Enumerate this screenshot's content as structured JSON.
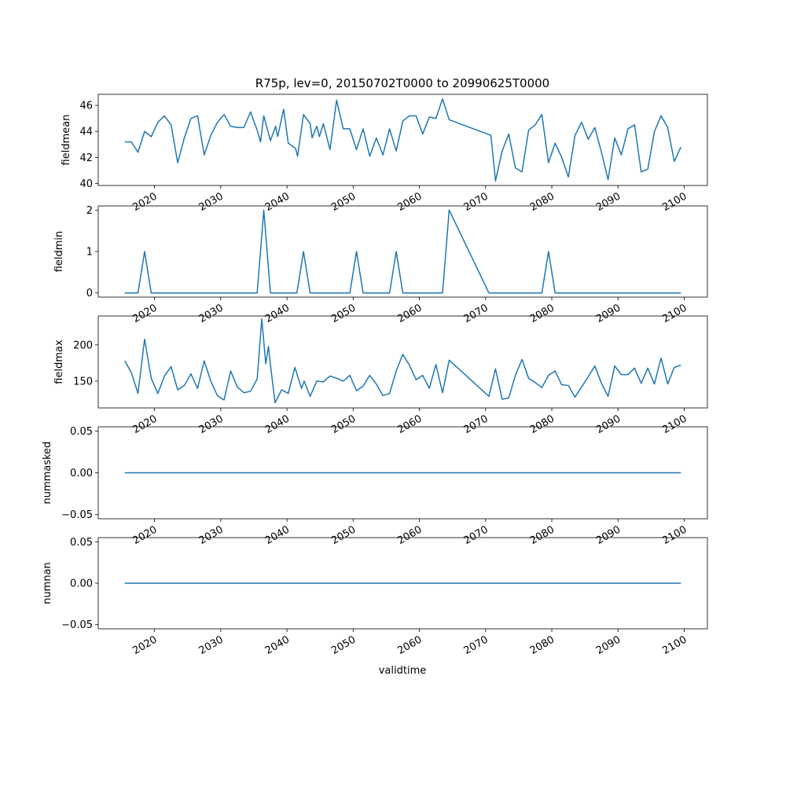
{
  "figure": {
    "title": "R75p, lev=0, 20150702T0000 to 20990625T0000",
    "xlabel": "validtime",
    "line_color": "#1f77b4"
  },
  "chart_data": [
    {
      "type": "line",
      "ylabel": "fieldmean",
      "xlim": [
        2011.5,
        2103.5
      ],
      "ylim": [
        39.85,
        46.85
      ],
      "xticks": [
        2020,
        2030,
        2040,
        2050,
        2060,
        2070,
        2080,
        2090,
        2100
      ],
      "xtick_labels": [
        "2020",
        "2030",
        "2040",
        "2050",
        "2060",
        "2070",
        "2080",
        "2090",
        "2100"
      ],
      "yticks": [
        40,
        42,
        44,
        46
      ],
      "ytick_labels": [
        "40",
        "42",
        "44",
        "46"
      ],
      "x": [
        2015.5,
        2016.5,
        2017.5,
        2018.5,
        2019.5,
        2020.5,
        2021.5,
        2022.5,
        2023.5,
        2024.5,
        2025.5,
        2026.5,
        2027.5,
        2028.5,
        2029.5,
        2030.5,
        2031.5,
        2032.5,
        2033.5,
        2034.5,
        2035.5,
        2036,
        2036.5,
        2037.5,
        2038.3,
        2038.6,
        2039.5,
        2040.2,
        2041.3,
        2041.6,
        2042.5,
        2043.5,
        2043.8,
        2044.5,
        2044.9,
        2045.5,
        2046.5,
        2047.5,
        2048.5,
        2049.5,
        2050.5,
        2051.5,
        2052.5,
        2053.5,
        2054.5,
        2055.5,
        2056.5,
        2057.5,
        2058.5,
        2059.5,
        2060.5,
        2061.5,
        2062.5,
        2063.5,
        2064.5,
        2070.8,
        2071.5,
        2072.5,
        2073.5,
        2074.5,
        2075.5,
        2076.5,
        2077.5,
        2078.5,
        2079.5,
        2080.5,
        2081.5,
        2082.5,
        2083.5,
        2084.5,
        2085.5,
        2086.5,
        2087.5,
        2088.5,
        2089.5,
        2090.5,
        2091.5,
        2092.5,
        2093.5,
        2094.5,
        2095.5,
        2096.5,
        2097.5,
        2098.5,
        2099.5
      ],
      "y": [
        43.2,
        43.2,
        42.4,
        44.0,
        43.6,
        44.7,
        45.2,
        44.5,
        41.6,
        43.5,
        45.0,
        45.2,
        42.2,
        43.7,
        44.7,
        45.3,
        44.4,
        44.3,
        44.3,
        45.5,
        44.1,
        43.2,
        45.2,
        43.3,
        44.4,
        43.6,
        45.7,
        43.1,
        42.7,
        42.1,
        45.3,
        44.6,
        43.5,
        44.4,
        43.6,
        44.6,
        42.6,
        46.4,
        44.2,
        44.2,
        42.6,
        44.2,
        42.1,
        43.5,
        42.2,
        44.2,
        42.5,
        44.8,
        45.2,
        45.2,
        43.8,
        45.1,
        45.0,
        46.5,
        44.9,
        43.7,
        40.2,
        42.5,
        43.8,
        41.2,
        40.9,
        44.1,
        44.5,
        45.3,
        41.6,
        43.1,
        42.0,
        40.5,
        43.7,
        44.7,
        43.4,
        44.3,
        42.4,
        40.3,
        43.5,
        42.2,
        44.2,
        44.5,
        40.9,
        41.1,
        44.0,
        45.2,
        44.3,
        41.7,
        42.8
      ]
    },
    {
      "type": "line",
      "ylabel": "fieldmin",
      "xlim": [
        2011.5,
        2103.5
      ],
      "ylim": [
        -0.1,
        2.1
      ],
      "xticks": [
        2020,
        2030,
        2040,
        2050,
        2060,
        2070,
        2080,
        2090,
        2100
      ],
      "xtick_labels": [
        "2020",
        "2030",
        "2040",
        "2050",
        "2060",
        "2070",
        "2080",
        "2090",
        "2100"
      ],
      "yticks": [
        0,
        1,
        2
      ],
      "ytick_labels": [
        "0",
        "1",
        "2"
      ],
      "x": [
        2015.5,
        2017.5,
        2018.5,
        2019.5,
        2035.5,
        2036.5,
        2037.5,
        2041.5,
        2042.5,
        2043.5,
        2049.5,
        2050.5,
        2051.5,
        2055.5,
        2056.5,
        2057.5,
        2063.5,
        2064.5,
        2070.5,
        2078.5,
        2079.5,
        2080.5,
        2099.5
      ],
      "y": [
        0,
        0,
        1,
        0,
        0,
        2,
        0,
        0,
        1,
        0,
        0,
        1,
        0,
        0,
        1,
        0,
        0,
        2,
        0,
        0,
        1,
        0,
        0
      ]
    },
    {
      "type": "line",
      "ylabel": "fieldmax",
      "xlim": [
        2011.5,
        2103.5
      ],
      "ylim": [
        113,
        240
      ],
      "xticks": [
        2020,
        2030,
        2040,
        2050,
        2060,
        2070,
        2080,
        2090,
        2100
      ],
      "xtick_labels": [
        "2020",
        "2030",
        "2040",
        "2050",
        "2060",
        "2070",
        "2080",
        "2090",
        "2100"
      ],
      "yticks": [
        150,
        200
      ],
      "ytick_labels": [
        "150",
        "200"
      ],
      "x": [
        2015.5,
        2016.5,
        2017.5,
        2018.5,
        2019.5,
        2020.5,
        2021.5,
        2022.5,
        2023.5,
        2024.5,
        2025.5,
        2026.5,
        2027.5,
        2028.5,
        2029.5,
        2030.5,
        2031.5,
        2032.5,
        2033.5,
        2034.5,
        2035.5,
        2036.2,
        2036.8,
        2037.2,
        2037.5,
        2038.2,
        2039.2,
        2040.2,
        2041.2,
        2042.2,
        2042.6,
        2043.5,
        2044.5,
        2045.5,
        2046.5,
        2047.5,
        2048.5,
        2049.5,
        2050.5,
        2051.5,
        2052.5,
        2053.5,
        2054.5,
        2055.5,
        2056.5,
        2057.5,
        2058.5,
        2059.5,
        2060.5,
        2061.5,
        2062.5,
        2063.5,
        2064.5,
        2070.5,
        2071.5,
        2072.5,
        2073.5,
        2074.5,
        2075.5,
        2076.5,
        2077.5,
        2078.5,
        2079.5,
        2080.5,
        2081.5,
        2082.5,
        2083.5,
        2084.5,
        2085.5,
        2086.5,
        2087.5,
        2088.5,
        2089.5,
        2090.5,
        2091.5,
        2092.5,
        2093.5,
        2094.5,
        2095.5,
        2096.5,
        2097.5,
        2098.5,
        2099.5
      ],
      "y": [
        178,
        162,
        133,
        208,
        154,
        133,
        157,
        170,
        138,
        144,
        160,
        140,
        178,
        150,
        130,
        124,
        164,
        142,
        134,
        136,
        153,
        236,
        174,
        198,
        173,
        120,
        138,
        133,
        169,
        140,
        150,
        129,
        150,
        149,
        157,
        154,
        150,
        158,
        137,
        143,
        158,
        146,
        130,
        133,
        164,
        187,
        172,
        152,
        158,
        140,
        173,
        134,
        179,
        129,
        167,
        125,
        127,
        158,
        180,
        154,
        148,
        141,
        158,
        164,
        145,
        144,
        128,
        142,
        156,
        171,
        147,
        129,
        171,
        159,
        159,
        168,
        147,
        168,
        146,
        182,
        146,
        169,
        172
      ]
    },
    {
      "type": "line",
      "ylabel": "nummasked",
      "xlim": [
        2011.5,
        2103.5
      ],
      "ylim": [
        -0.055,
        0.055
      ],
      "xticks": [
        2020,
        2030,
        2040,
        2050,
        2060,
        2070,
        2080,
        2090,
        2100
      ],
      "xtick_labels": [
        "2020",
        "2030",
        "2040",
        "2050",
        "2060",
        "2070",
        "2080",
        "2090",
        "2100"
      ],
      "yticks": [
        -0.05,
        0,
        0.05
      ],
      "ytick_labels": [
        "−0.05",
        "0.00",
        "0.05"
      ],
      "x": [
        2015.5,
        2099.5
      ],
      "y": [
        0,
        0
      ]
    },
    {
      "type": "line",
      "ylabel": "numnan",
      "xlim": [
        2011.5,
        2103.5
      ],
      "ylim": [
        -0.055,
        0.055
      ],
      "xticks": [
        2020,
        2030,
        2040,
        2050,
        2060,
        2070,
        2080,
        2090,
        2100
      ],
      "xtick_labels": [
        "2020",
        "2030",
        "2040",
        "2050",
        "2060",
        "2070",
        "2080",
        "2090",
        "2100"
      ],
      "yticks": [
        -0.05,
        0,
        0.05
      ],
      "ytick_labels": [
        "−0.05",
        "0.00",
        "0.05"
      ],
      "x": [
        2015.5,
        2099.5
      ],
      "y": [
        0,
        0
      ]
    }
  ]
}
